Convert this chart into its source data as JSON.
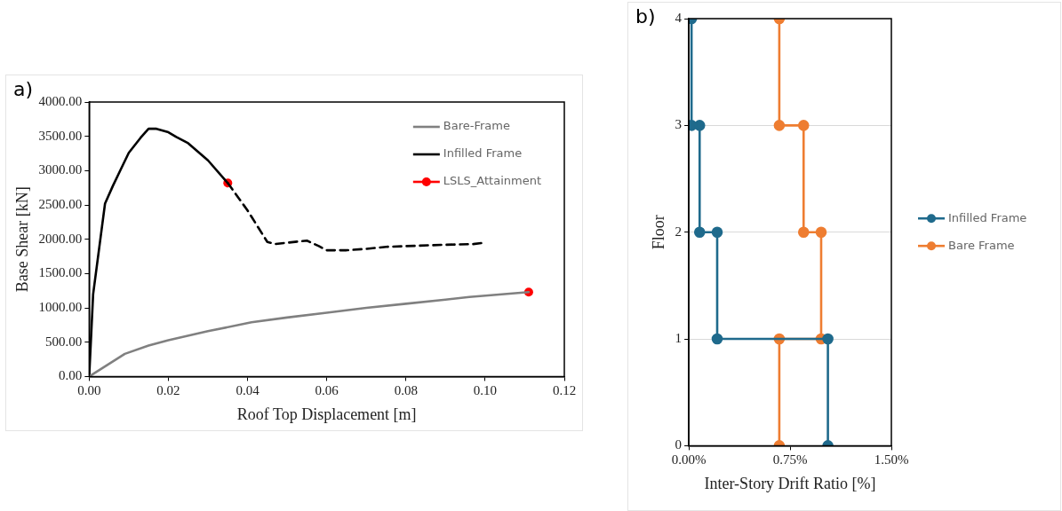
{
  "chart_data": [
    {
      "type": "line",
      "title": "a)",
      "xlabel": "Roof Top Displacement [m]",
      "ylabel": "Base Shear [kN]",
      "xlim": [
        0,
        0.12
      ],
      "xticks": [
        {
          "value": 0,
          "label": "0.00"
        },
        {
          "value": 0.02,
          "label": "0.02"
        },
        {
          "value": 0.04,
          "label": "0.04"
        },
        {
          "value": 0.06,
          "label": "0.06"
        },
        {
          "value": 0.08,
          "label": "0.08"
        },
        {
          "value": 0.1,
          "label": "0.10"
        },
        {
          "value": 0.12,
          "label": "0.12"
        }
      ],
      "ylim": [
        0,
        4000
      ],
      "yticks": [
        {
          "value": 0,
          "label": "0.00"
        },
        {
          "value": 500,
          "label": "500.00"
        },
        {
          "value": 1000,
          "label": "1000.00"
        },
        {
          "value": 1500,
          "label": "1500.00"
        },
        {
          "value": 2000,
          "label": "2000.00"
        },
        {
          "value": 2500,
          "label": "2500.00"
        },
        {
          "value": 3000,
          "label": "3000.00"
        },
        {
          "value": 3500,
          "label": "3500.00"
        },
        {
          "value": 4000,
          "label": "4000.00"
        }
      ],
      "grid": false,
      "legend": "top right",
      "series": [
        {
          "name": "Bare-Frame",
          "type": "line",
          "color": "#808080",
          "marker": "none",
          "line_style": "solid",
          "x": [
            0,
            0.009,
            0.015,
            0.02,
            0.03,
            0.041,
            0.05,
            0.06,
            0.07,
            0.08,
            0.09,
            0.096,
            0.111
          ],
          "values": [
            0,
            330,
            450,
            530,
            660,
            790,
            860,
            930,
            1000,
            1060,
            1120,
            1160,
            1230
          ]
        },
        {
          "name": "Infilled Frame",
          "type": "line",
          "color": "#000000",
          "marker": "none",
          "line_style": "solid",
          "x": [
            0,
            0.001,
            0.004,
            0.006,
            0.008,
            0.01,
            0.013,
            0.015,
            0.017,
            0.02,
            0.022,
            0.025,
            0.03,
            0.035
          ],
          "values": [
            0,
            1200,
            2520,
            2780,
            3020,
            3260,
            3480,
            3610,
            3610,
            3560,
            3490,
            3400,
            3150,
            2820
          ]
        },
        {
          "type": "line",
          "color": "#000000",
          "marker": "none",
          "line_style": "dashed",
          "x": [
            0.035,
            0.04,
            0.045,
            0.047,
            0.05,
            0.055,
            0.058,
            0.06,
            0.065,
            0.07,
            0.075,
            0.08,
            0.09,
            0.097,
            0.1
          ],
          "values": [
            2820,
            2420,
            1960,
            1930,
            1950,
            1980,
            1900,
            1840,
            1840,
            1860,
            1890,
            1900,
            1920,
            1930,
            1950
          ]
        },
        {
          "name": "LSLS_Attainment",
          "type": "scatter",
          "color": "#ff0000",
          "marker": "circle",
          "x": [
            0.035,
            0.111
          ],
          "values": [
            2820,
            1230
          ]
        }
      ]
    },
    {
      "type": "line",
      "title": "b)",
      "xlabel": "Inter-Story Drift Ratio [%]",
      "ylabel": "Floor",
      "xlim": [
        0,
        1.5
      ],
      "xticks": [
        {
          "value": 0,
          "label": "0.00%"
        },
        {
          "value": 0.75,
          "label": "0.75%"
        },
        {
          "value": 1.5,
          "label": "1.50%"
        }
      ],
      "ylim": [
        0,
        4
      ],
      "yticks": [
        0,
        1,
        2,
        3,
        4
      ],
      "grid": "y",
      "legend": "right",
      "marker": "circle",
      "line_style": "solid",
      "series": [
        {
          "name": "Infilled Frame",
          "color": "#1f6a8c",
          "x": [
            1.03,
            1.03,
            0.21,
            0.21,
            0.08,
            0.08,
            0.02,
            0.02
          ],
          "values": [
            0,
            1,
            1,
            2,
            2,
            3,
            3,
            4
          ]
        },
        {
          "name": "Bare Frame",
          "color": "#ee7d31",
          "x": [
            0.67,
            0.67,
            0.98,
            0.98,
            0.85,
            0.85,
            0.67,
            0.67
          ],
          "values": [
            0,
            1,
            1,
            2,
            2,
            3,
            3,
            4
          ]
        }
      ]
    }
  ]
}
